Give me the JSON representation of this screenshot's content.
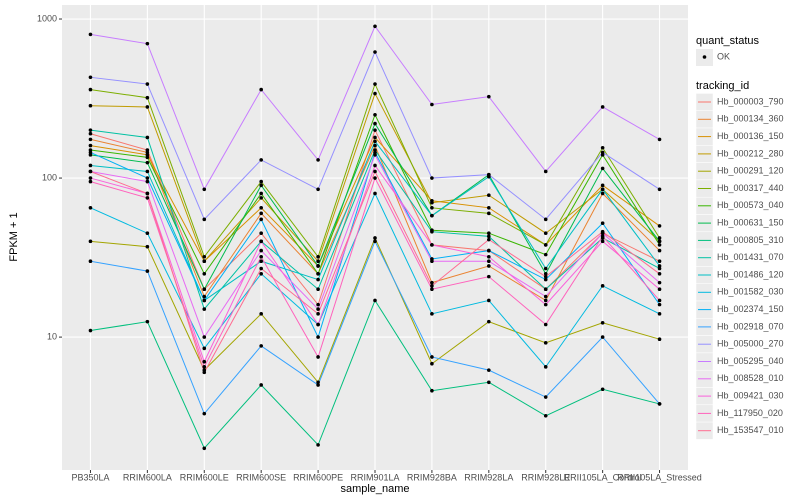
{
  "chart_data": {
    "type": "line",
    "x_label": "sample_name",
    "y_label": "FPKM + 1",
    "log_y": true,
    "grid": true,
    "point_color": "#000000",
    "shape_legend_title": "quant_status",
    "shape_legend_labels": [
      "OK"
    ],
    "legend_title": "tracking_id",
    "legend_position": "right",
    "ylim": [
      1.46,
      1225
    ],
    "yticks": [
      10,
      100,
      1000
    ],
    "categories": [
      "PB350LA",
      "RRIM600LA",
      "RRIM600LE",
      "RRIM600SE",
      "RRIM600PE",
      "RRIM901LA",
      "RRIM928BA",
      "RRIM928LA",
      "RRIM928LE",
      "RRII105LA_Control",
      "RRII105LA_Stressed"
    ],
    "series": [
      {
        "name": "Hb_000003_790",
        "color": "#F8766D",
        "values": [
          190,
          150,
          20,
          45,
          16,
          200,
          38,
          35,
          20,
          45,
          30
        ]
      },
      {
        "name": "Hb_000134_360",
        "color": "#EA8331",
        "values": [
          175,
          145,
          18,
          60,
          25,
          160,
          22,
          28,
          17,
          80,
          35
        ]
      },
      {
        "name": "Hb_000136_150",
        "color": "#D89000",
        "values": [
          160,
          140,
          30,
          65,
          28,
          180,
          72,
          65,
          38,
          90,
          50
        ]
      },
      {
        "name": "Hb_000212_280",
        "color": "#C09B00",
        "values": [
          285,
          280,
          30,
          75,
          30,
          340,
          70,
          78,
          45,
          85,
          40
        ]
      },
      {
        "name": "Hb_000291_120",
        "color": "#A3A500",
        "values": [
          40,
          37,
          6.2,
          14,
          5.2,
          42,
          6.8,
          12.5,
          9.2,
          12.3,
          9.7
        ]
      },
      {
        "name": "Hb_000317_440",
        "color": "#7CAE00",
        "values": [
          360,
          320,
          32,
          95,
          32,
          390,
          65,
          60,
          38,
          155,
          42
        ]
      },
      {
        "name": "Hb_000573_040",
        "color": "#39B600",
        "values": [
          150,
          135,
          25,
          80,
          25,
          250,
          47,
          45,
          33,
          140,
          38
        ]
      },
      {
        "name": "Hb_000631_150",
        "color": "#00BB4E",
        "values": [
          140,
          125,
          20,
          90,
          28,
          220,
          58,
          105,
          25,
          115,
          40
        ]
      },
      {
        "name": "Hb_000805_310",
        "color": "#00BF7D",
        "values": [
          11,
          12.5,
          2,
          5,
          2.1,
          17,
          4.6,
          5.2,
          3.2,
          4.7,
          3.8
        ]
      },
      {
        "name": "Hb_001431_070",
        "color": "#00C1A3",
        "values": [
          200,
          180,
          15,
          40,
          20,
          150,
          46,
          43,
          20,
          42,
          27
        ]
      },
      {
        "name": "Hb_001486_120",
        "color": "#00BFC4",
        "values": [
          120,
          110,
          17,
          30,
          23,
          170,
          58,
          102,
          27,
          85,
          28
        ]
      },
      {
        "name": "Hb_001582_030",
        "color": "#00BAE0",
        "values": [
          65,
          45,
          8.5,
          25,
          12,
          80,
          14,
          17,
          6.5,
          21,
          14
        ]
      },
      {
        "name": "Hb_002374_150",
        "color": "#00B0F6",
        "values": [
          145,
          100,
          17,
          55,
          10,
          145,
          31,
          35,
          23,
          52,
          16
        ]
      },
      {
        "name": "Hb_002918_070",
        "color": "#35A2FF",
        "values": [
          30,
          26,
          3.3,
          8.8,
          5,
          40,
          7.5,
          6.2,
          4.2,
          10,
          3.8
        ]
      },
      {
        "name": "Hb_005000_270",
        "color": "#9590FF",
        "values": [
          430,
          390,
          55,
          130,
          85,
          620,
          100,
          105,
          55,
          145,
          85
        ]
      },
      {
        "name": "Hb_005295_040",
        "color": "#C77CFF",
        "values": [
          800,
          700,
          85,
          360,
          130,
          900,
          290,
          325,
          110,
          280,
          175
        ]
      },
      {
        "name": "Hb_008528_010",
        "color": "#E76BF3",
        "values": [
          110,
          95,
          10,
          35,
          15,
          140,
          30,
          30,
          18,
          45,
          22
        ]
      },
      {
        "name": "Hb_009421_030",
        "color": "#FA62DB",
        "values": [
          100,
          80,
          7,
          40,
          12,
          120,
          38,
          32,
          16,
          40,
          20
        ]
      },
      {
        "name": "Hb_117950_020",
        "color": "#FF62BC",
        "values": [
          95,
          75,
          6.5,
          32,
          7.5,
          100,
          20,
          24,
          12,
          43,
          17
        ]
      },
      {
        "name": "Hb_153547_010",
        "color": "#FF6C91",
        "values": [
          110,
          80,
          6,
          27,
          14,
          110,
          21,
          41,
          24,
          46,
          25
        ]
      }
    ]
  }
}
